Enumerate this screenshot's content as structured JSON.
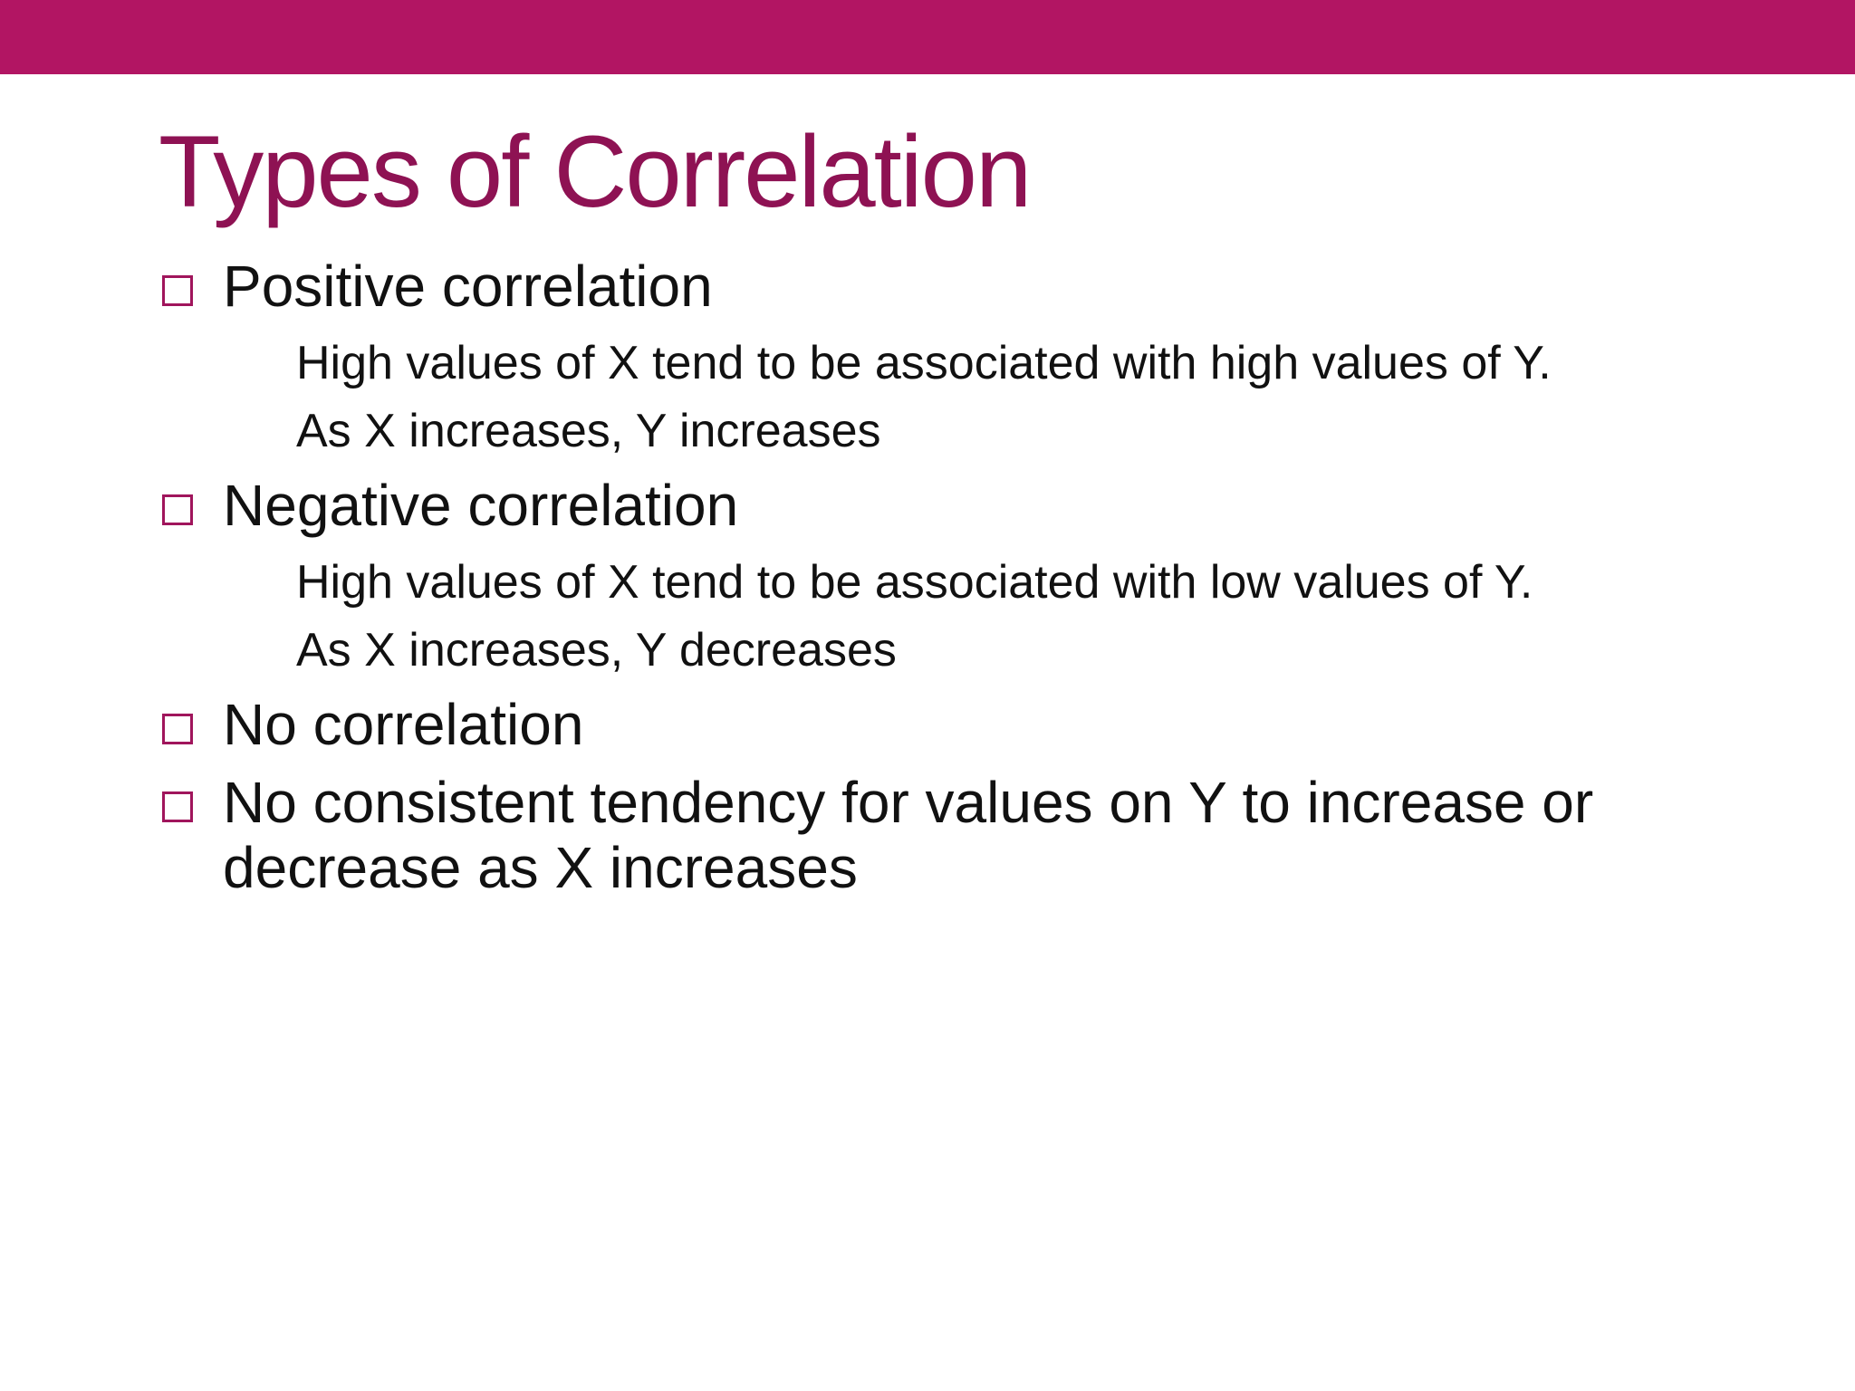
{
  "slide": {
    "title": "Types of Correlation",
    "accent_color": "#b21563",
    "title_color": "#8e1253",
    "bullet_marker_icon": "square-bullet-icon",
    "bullets": [
      {
        "label": "Positive correlation",
        "sub_lines": [
          "High values of X tend to be associated with high values of Y.",
          "As X increases, Y increases"
        ]
      },
      {
        "label": "Negative correlation",
        "sub_lines": [
          "High values of X tend to be associated with low values of Y.",
          "As X increases, Y decreases"
        ]
      },
      {
        "label": "No correlation",
        "sub_lines": []
      },
      {
        "label_line_1": "No consistent tendency for values on Y to increase or",
        "label_line_2": "decrease as X increases"
      }
    ]
  }
}
